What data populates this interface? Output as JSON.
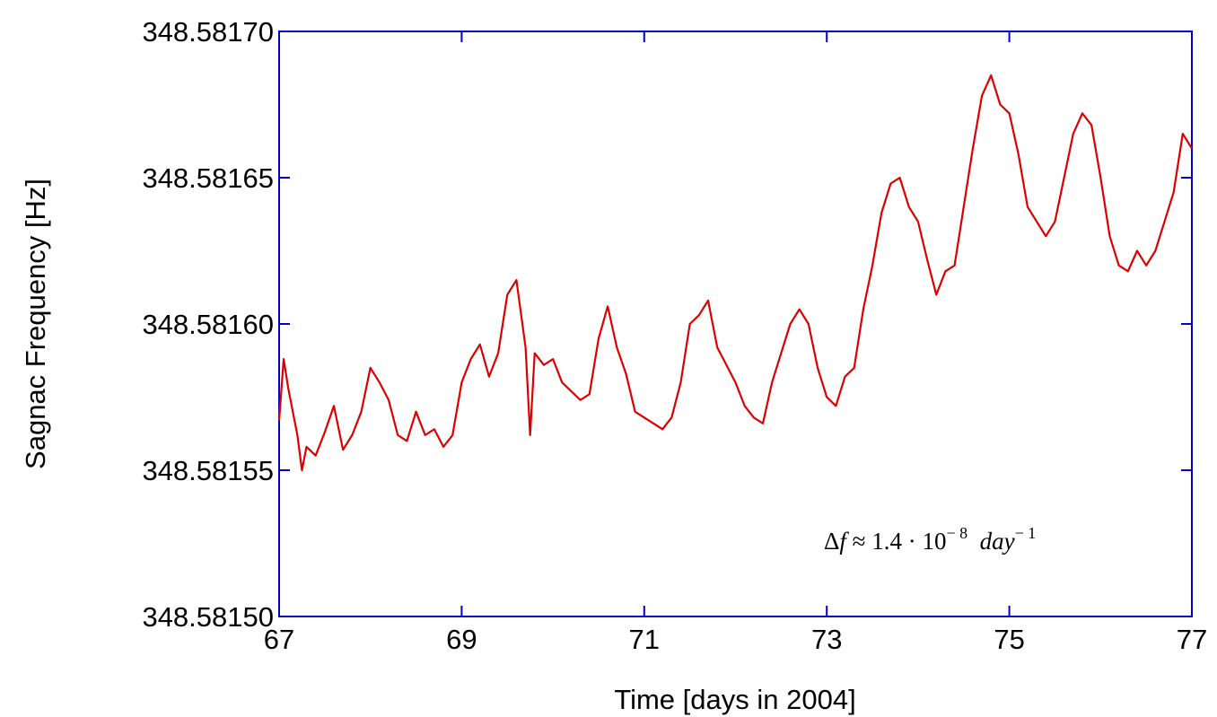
{
  "chart_data": {
    "type": "line",
    "xlabel": "Time [days in 2004]",
    "ylabel": "Sagnac Frequency [Hz]",
    "annotation": [
      "Δ",
      "f",
      " ≈ 1.4 · 10",
      "− 8",
      "  day",
      "− 1"
    ],
    "xlim": [
      67,
      77
    ],
    "xticks": [
      67,
      69,
      71,
      73,
      75,
      77
    ],
    "ylim": [
      348.5815,
      348.5817
    ],
    "yticks": [
      {
        "value": 348.5815,
        "label": "348.58150"
      },
      348.58155,
      {
        "value": 348.5816,
        "label": "348.58160"
      },
      348.58165,
      {
        "value": 348.5817,
        "label": "348.58170"
      }
    ],
    "axis_color": "#0000cc",
    "x": [
      67,
      67.05,
      67.1,
      67.2,
      67.25,
      67.3,
      67.4,
      67.5,
      67.6,
      67.7,
      67.8,
      67.9,
      68,
      68.1,
      68.2,
      68.3,
      68.4,
      68.5,
      68.6,
      68.7,
      68.8,
      68.9,
      69,
      69.1,
      69.2,
      69.3,
      69.4,
      69.5,
      69.6,
      69.7,
      69.75,
      69.8,
      69.9,
      70,
      70.1,
      70.2,
      70.3,
      70.4,
      70.5,
      70.6,
      70.7,
      70.8,
      70.9,
      71,
      71.1,
      71.2,
      71.3,
      71.4,
      71.5,
      71.6,
      71.7,
      71.8,
      71.9,
      72,
      72.1,
      72.2,
      72.3,
      72.4,
      72.5,
      72.6,
      72.7,
      72.8,
      72.9,
      73,
      73.1,
      73.2,
      73.3,
      73.4,
      73.5,
      73.6,
      73.7,
      73.8,
      73.9,
      74,
      74.1,
      74.2,
      74.3,
      74.4,
      74.5,
      74.6,
      74.7,
      74.8,
      74.9,
      75,
      75.1,
      75.2,
      75.3,
      75.4,
      75.5,
      75.6,
      75.7,
      75.8,
      75.9,
      76,
      76.1,
      76.2,
      76.3,
      76.4,
      76.5,
      76.6,
      76.7,
      76.8,
      76.9,
      77
    ],
    "series": [
      {
        "name": "Sagnac frequency",
        "color": "#dd0000",
        "values": [
          348.581567,
          348.581588,
          348.581578,
          348.581562,
          348.58155,
          348.581558,
          348.581555,
          348.581563,
          348.581572,
          348.581557,
          348.581562,
          348.58157,
          348.581585,
          348.58158,
          348.581574,
          348.581562,
          348.58156,
          348.58157,
          348.581562,
          348.581564,
          348.581558,
          348.581562,
          348.58158,
          348.581588,
          348.581593,
          348.581582,
          348.58159,
          348.58161,
          348.581615,
          348.581592,
          348.581562,
          348.58159,
          348.581586,
          348.581588,
          348.58158,
          348.581577,
          348.581574,
          348.581576,
          348.581595,
          348.581606,
          348.581592,
          348.581583,
          348.58157,
          348.581568,
          348.581566,
          348.581564,
          348.581568,
          348.58158,
          348.5816,
          348.581603,
          348.581608,
          348.581592,
          348.581586,
          348.58158,
          348.581572,
          348.581568,
          348.581566,
          348.58158,
          348.58159,
          348.5816,
          348.581605,
          348.5816,
          348.581585,
          348.581575,
          348.581572,
          348.581582,
          348.581585,
          348.581605,
          348.58162,
          348.581638,
          348.581648,
          348.58165,
          348.58164,
          348.581635,
          348.581622,
          348.58161,
          348.581618,
          348.58162,
          348.58164,
          348.58166,
          348.581678,
          348.581685,
          348.581675,
          348.581672,
          348.581658,
          348.58164,
          348.581635,
          348.58163,
          348.581635,
          348.58165,
          348.581665,
          348.581672,
          348.581668,
          348.58165,
          348.58163,
          348.58162,
          348.581618,
          348.581625,
          348.58162,
          348.581625,
          348.581635,
          348.581645,
          348.581665,
          348.58166
        ]
      }
    ]
  }
}
